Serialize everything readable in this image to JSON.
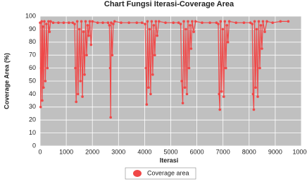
{
  "chart_data": {
    "type": "line",
    "title": "Chart Fungsi Iterasi-Coverage Area",
    "x_label": "Iterasi",
    "y_label": "Coverage Area (%)",
    "xlim": [
      0,
      10000
    ],
    "ylim": [
      0,
      100
    ],
    "xticks": [
      0,
      1000,
      2000,
      3000,
      4000,
      5000,
      6000,
      7000,
      8000,
      9000,
      10000
    ],
    "yticks": [
      0,
      10,
      20,
      30,
      40,
      50,
      60,
      70,
      80,
      90,
      100
    ],
    "grid": true,
    "legend": "bottom",
    "x": [
      0,
      20,
      40,
      60,
      80,
      100,
      130,
      160,
      200,
      240,
      280,
      320,
      360,
      400,
      500,
      700,
      900,
      1100,
      1250,
      1320,
      1350,
      1380,
      1420,
      1450,
      1500,
      1540,
      1580,
      1620,
      1660,
      1700,
      1740,
      1780,
      1820,
      1860,
      1900,
      1950,
      2000,
      2200,
      2400,
      2600,
      2650,
      2680,
      2700,
      2720,
      2760,
      2800,
      2850,
      3100,
      3400,
      3700,
      3900,
      4020,
      4050,
      4080,
      4110,
      4150,
      4190,
      4230,
      4270,
      4310,
      4350,
      4390,
      4430,
      4480,
      4550,
      4800,
      5100,
      5300,
      5380,
      5420,
      5460,
      5500,
      5540,
      5580,
      5620,
      5660,
      5700,
      5740,
      5780,
      5820,
      5880,
      5950,
      6200,
      6500,
      6750,
      6820,
      6850,
      6880,
      6910,
      6950,
      6990,
      7030,
      7070,
      7110,
      7150,
      7190,
      7240,
      7500,
      7800,
      8050,
      8120,
      8150,
      8180,
      8210,
      8250,
      8290,
      8330,
      8370,
      8410,
      8450,
      8490,
      8530,
      8600,
      8680,
      8900,
      9200,
      9500
    ],
    "series": [
      {
        "name": "Coverage area",
        "color": "#f04848",
        "values": [
          95,
          30,
          60,
          96,
          35,
          92,
          45,
          96,
          50,
          94,
          60,
          96,
          88,
          96,
          95,
          95,
          95,
          95,
          95,
          94,
          60,
          34,
          96,
          40,
          90,
          50,
          96,
          38,
          88,
          55,
          96,
          70,
          93,
          85,
          96,
          78,
          96,
          95,
          95,
          95,
          93,
          60,
          22,
          95,
          70,
          94,
          96,
          95,
          95,
          95,
          95,
          94,
          60,
          32,
          96,
          45,
          90,
          40,
          96,
          55,
          93,
          70,
          96,
          85,
          96,
          95,
          95,
          95,
          94,
          50,
          33,
          96,
          45,
          90,
          40,
          96,
          60,
          93,
          75,
          96,
          88,
          96,
          95,
          95,
          95,
          94,
          40,
          28,
          96,
          42,
          90,
          38,
          96,
          60,
          93,
          80,
          96,
          95,
          95,
          95,
          94,
          40,
          28,
          96,
          45,
          90,
          38,
          96,
          60,
          93,
          75,
          96,
          88,
          96,
          95,
          96,
          96
        ]
      }
    ]
  }
}
